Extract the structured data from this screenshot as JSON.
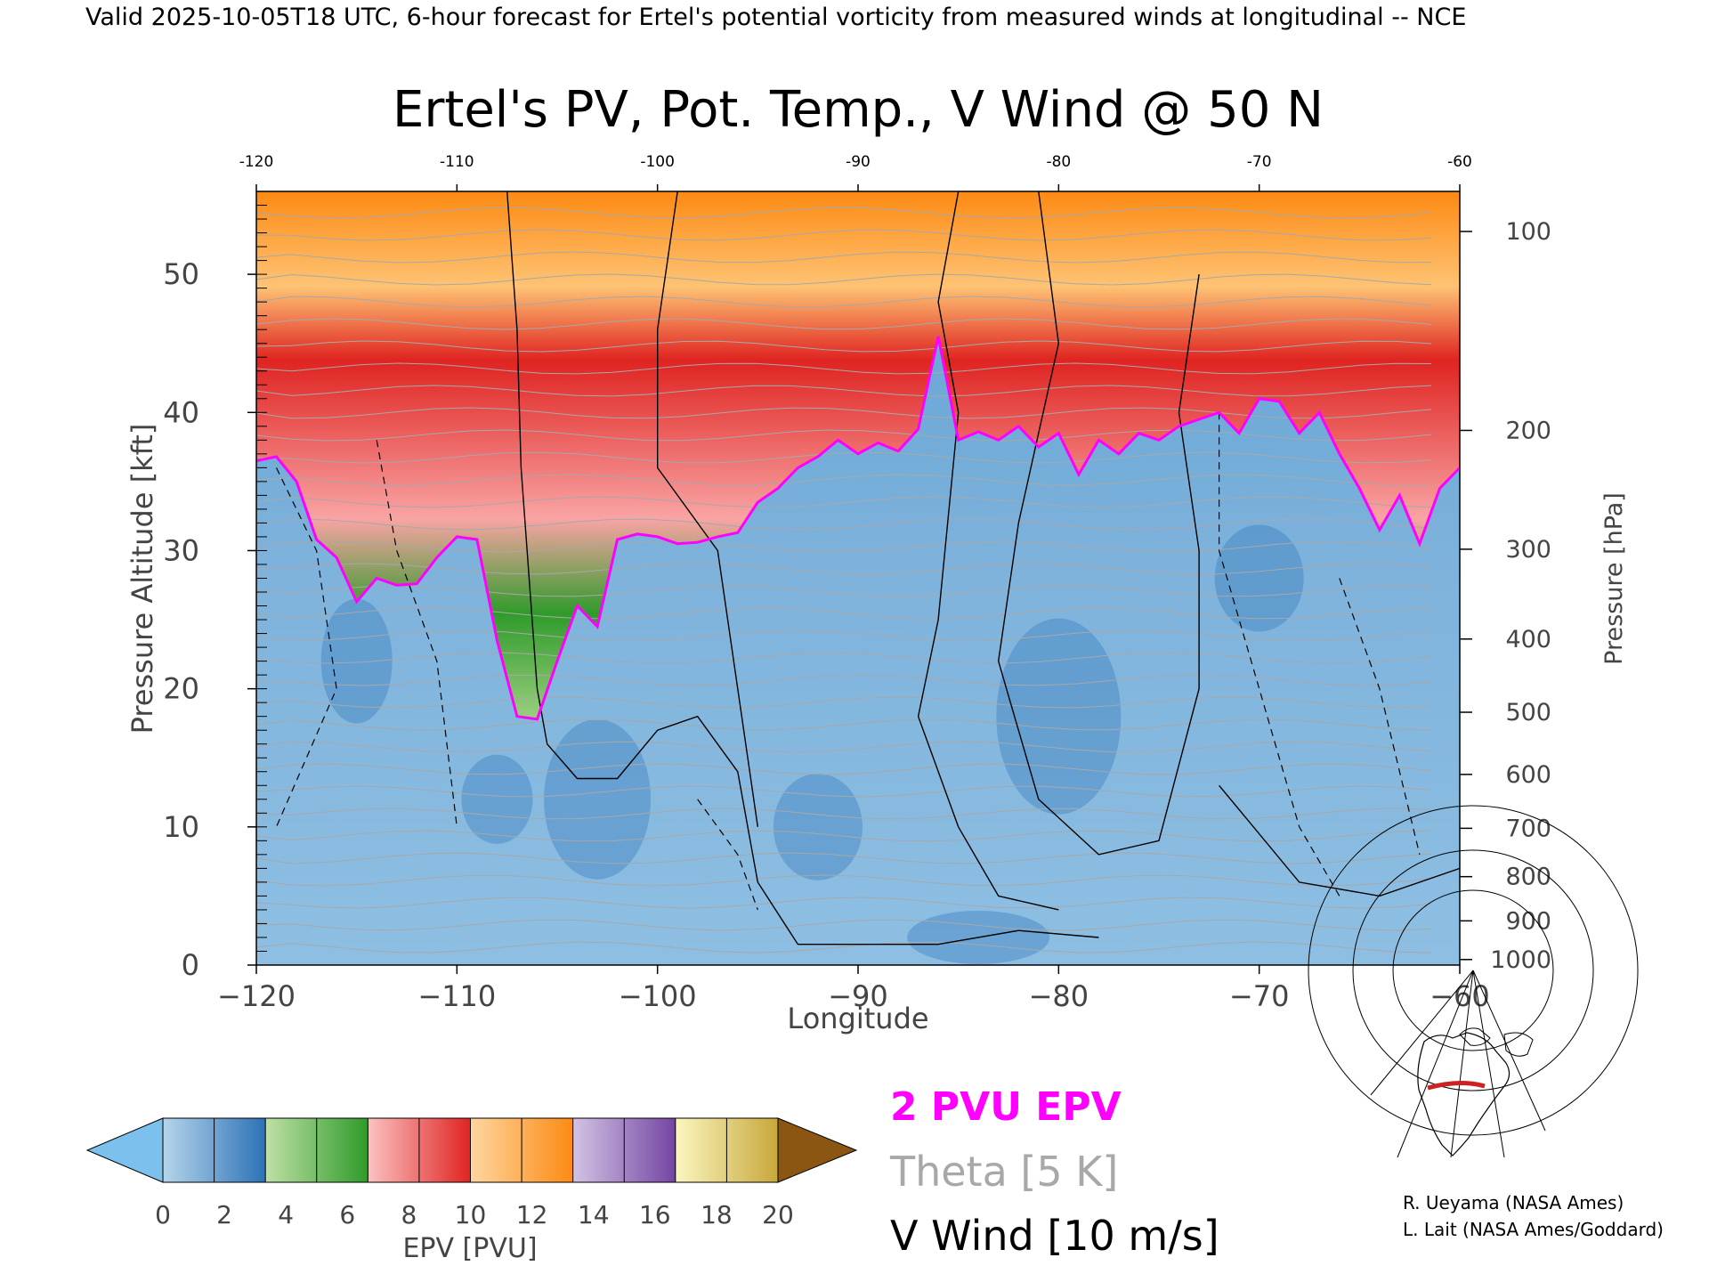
{
  "header": {
    "valid_line": "Valid 2025-10-05T18 UTC, 6-hour forecast for Ertel's potential vorticity from measured winds at longitudinal -- NCE"
  },
  "chart_data": {
    "type": "heatmap",
    "title": "Ertel's PV, Pot. Temp., V Wind @ 50 N",
    "xlabel": "Longitude",
    "ylabel_left": "Pressure Altitude [kft]",
    "ylabel_right": "Pressure [hPa]",
    "xlim": [
      -120,
      -60
    ],
    "ylim": [
      0,
      56
    ],
    "x_ticks": [
      -120,
      -110,
      -100,
      -90,
      -80,
      -70,
      -60
    ],
    "x_tick_labels": [
      "−120",
      "−110",
      "−100",
      "−90",
      "−80",
      "−70",
      "−60"
    ],
    "top_tick_labels": [
      "-120",
      "-110",
      "-100",
      "-90",
      "-80",
      "-70",
      "-60"
    ],
    "y_ticks": [
      0,
      10,
      20,
      30,
      40,
      50
    ],
    "y_tick_labels": [
      "0",
      "10",
      "20",
      "30",
      "40",
      "50"
    ],
    "pressure_ticks": [
      {
        "hpa": "100",
        "kft": 53.1
      },
      {
        "hpa": "200",
        "kft": 38.7
      },
      {
        "hpa": "300",
        "kft": 30.1
      },
      {
        "hpa": "400",
        "kft": 23.6
      },
      {
        "hpa": "500",
        "kft": 18.3
      },
      {
        "hpa": "600",
        "kft": 13.8
      },
      {
        "hpa": "700",
        "kft": 9.9
      },
      {
        "hpa": "800",
        "kft": 6.4
      },
      {
        "hpa": "900",
        "kft": 3.2
      },
      {
        "hpa": "1000",
        "kft": 0.4
      }
    ],
    "tropopause_2pvu_kft": [
      [
        -120,
        36.5
      ],
      [
        -119,
        36.8
      ],
      [
        -118,
        35.0
      ],
      [
        -117,
        30.8
      ],
      [
        -116,
        29.5
      ],
      [
        -115,
        26.3
      ],
      [
        -114,
        28.0
      ],
      [
        -113,
        27.5
      ],
      [
        -112,
        27.6
      ],
      [
        -111,
        29.5
      ],
      [
        -110,
        31.0
      ],
      [
        -109,
        30.8
      ],
      [
        -108,
        23.5
      ],
      [
        -107,
        18.0
      ],
      [
        -106,
        17.8
      ],
      [
        -105,
        22.0
      ],
      [
        -104,
        26.0
      ],
      [
        -103,
        24.5
      ],
      [
        -102,
        30.8
      ],
      [
        -101,
        31.2
      ],
      [
        -100,
        31.0
      ],
      [
        -99,
        30.5
      ],
      [
        -98,
        30.6
      ],
      [
        -97,
        31.0
      ],
      [
        -96,
        31.3
      ],
      [
        -95,
        33.5
      ],
      [
        -94,
        34.5
      ],
      [
        -93,
        36.0
      ],
      [
        -92,
        36.8
      ],
      [
        -91,
        38.0
      ],
      [
        -90,
        37.0
      ],
      [
        -89,
        37.8
      ],
      [
        -88,
        37.2
      ],
      [
        -87,
        38.8
      ],
      [
        -86,
        45.5
      ],
      [
        -85,
        38.0
      ],
      [
        -84,
        38.6
      ],
      [
        -83,
        38.0
      ],
      [
        -82,
        39.0
      ],
      [
        -81,
        37.5
      ],
      [
        -80,
        38.5
      ],
      [
        -79,
        35.5
      ],
      [
        -78,
        38.0
      ],
      [
        -77,
        37.0
      ],
      [
        -76,
        38.5
      ],
      [
        -75,
        38.0
      ],
      [
        -74,
        39.0
      ],
      [
        -73,
        39.5
      ],
      [
        -72,
        40.0
      ],
      [
        -71,
        38.5
      ],
      [
        -70,
        41.0
      ],
      [
        -69,
        40.8
      ],
      [
        -68,
        38.5
      ],
      [
        -67,
        40.0
      ],
      [
        -66,
        37.0
      ],
      [
        -65,
        34.5
      ],
      [
        -64,
        31.5
      ],
      [
        -63,
        34.0
      ],
      [
        -62,
        30.5
      ],
      [
        -61,
        34.5
      ],
      [
        -60,
        36.0
      ]
    ],
    "colorbar": {
      "label": "EPV [PVU]",
      "ticks": [
        "0",
        "2",
        "4",
        "6",
        "8",
        "10",
        "12",
        "14",
        "16",
        "18",
        "20"
      ],
      "colors": [
        "#9ec6e2",
        "#2c72b6",
        "#9bcf7f",
        "#2f9b2a",
        "#f9a4a4",
        "#df2421",
        "#fec374",
        "#fd8a13",
        "#b89bd0",
        "#7445a3",
        "#f5ed8f",
        "#8a5611"
      ],
      "under_color": "#7cc1ee",
      "over_color": "#8a5611"
    },
    "legend": {
      "pv_label": "2 PVU EPV",
      "pv_color": "#ff00ff",
      "theta_label": "Theta [5 K]",
      "theta_color": "#a8a8a8",
      "wind_label": "V Wind [10 m/s]",
      "wind_color": "#000000"
    }
  },
  "credits": {
    "line1": "R. Ueyama (NASA Ames)",
    "line2": "L. Lait (NASA Ames/Goddard)"
  },
  "map_inset": {
    "icon": "north-america-polar-map-icon",
    "track_color": "#cc2222"
  }
}
